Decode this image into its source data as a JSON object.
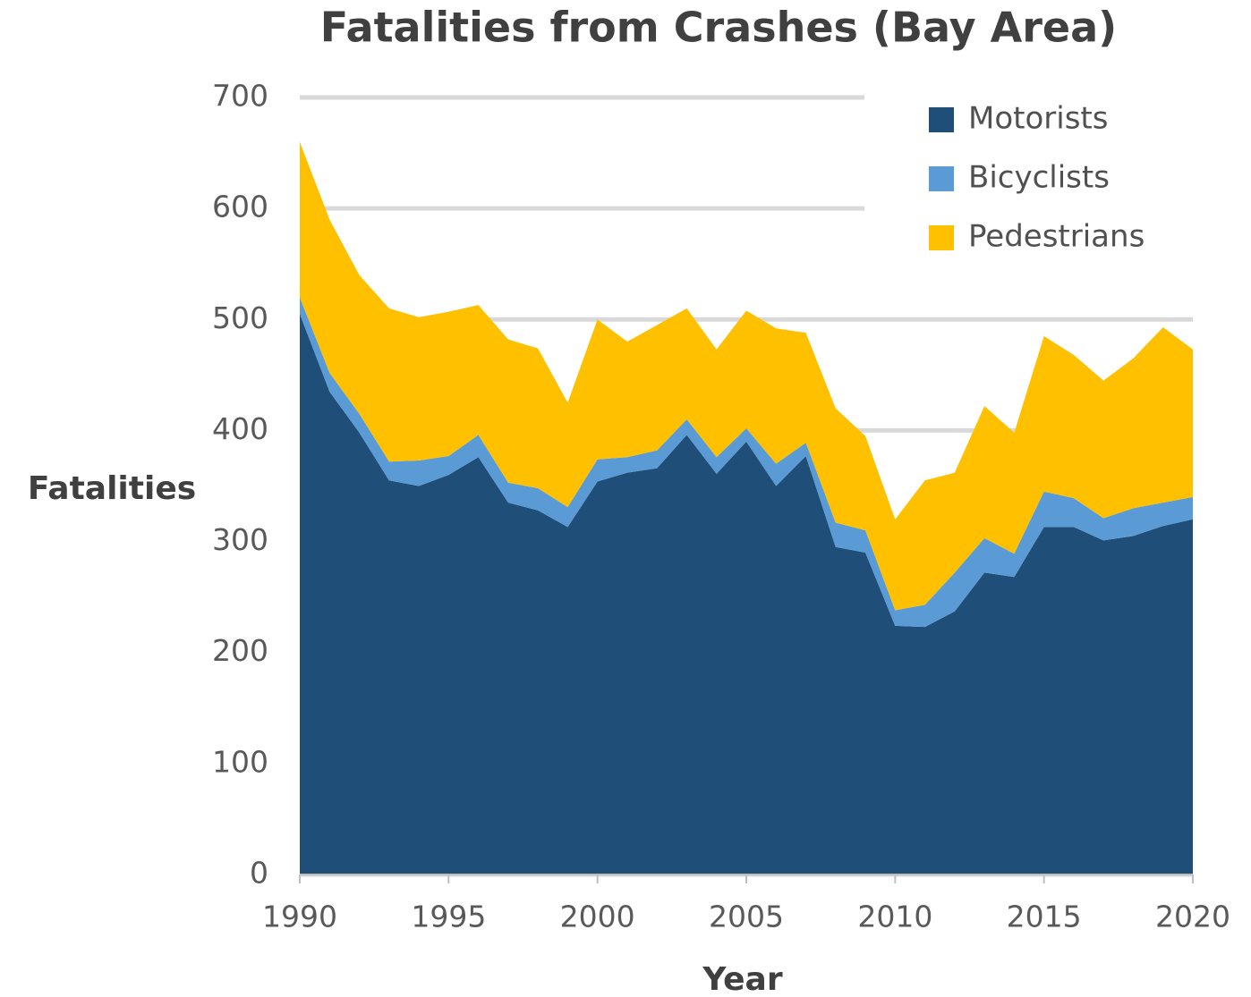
{
  "chart_data": {
    "type": "stacked_area",
    "title": "Fatalities from Crashes (Bay Area)",
    "x_label": "Year",
    "y_label": "Fatalities",
    "x": [
      1990,
      1991,
      1992,
      1993,
      1994,
      1995,
      1996,
      1997,
      1998,
      1999,
      2000,
      2001,
      2002,
      2003,
      2004,
      2005,
      2006,
      2007,
      2008,
      2009,
      2010,
      2011,
      2012,
      2013,
      2014,
      2015,
      2016,
      2017,
      2018,
      2019,
      2020
    ],
    "series": [
      {
        "name": "Motorists",
        "color": "#1f4e79",
        "values": [
          505,
          435,
          398,
          355,
          350,
          360,
          376,
          335,
          328,
          313,
          354,
          362,
          366,
          396,
          361,
          390,
          350,
          377,
          295,
          290,
          224,
          223,
          237,
          272,
          268,
          313,
          313,
          301,
          305,
          314,
          320
        ]
      },
      {
        "name": "Bicyclists",
        "color": "#5b9bd5",
        "values": [
          15,
          17,
          17,
          17,
          23,
          17,
          20,
          18,
          20,
          18,
          20,
          14,
          16,
          14,
          15,
          12,
          20,
          12,
          22,
          20,
          14,
          20,
          35,
          31,
          21,
          32,
          26,
          20,
          25,
          21,
          20
        ]
      },
      {
        "name": "Pedestrians",
        "color": "#ffc000",
        "values": [
          140,
          138,
          125,
          138,
          129,
          130,
          117,
          129,
          126,
          94,
          126,
          104,
          113,
          100,
          97,
          106,
          122,
          99,
          103,
          85,
          82,
          112,
          90,
          119,
          109,
          140,
          129,
          124,
          135,
          158,
          133
        ]
      }
    ],
    "xlim": [
      1990,
      2020
    ],
    "xticks": [
      1990,
      1995,
      2000,
      2005,
      2010,
      2015,
      2020
    ],
    "ylim": [
      0,
      700
    ],
    "yticks": [
      0,
      100,
      200,
      300,
      400,
      500,
      600,
      700
    ],
    "grid": true,
    "legend": "top-right"
  }
}
